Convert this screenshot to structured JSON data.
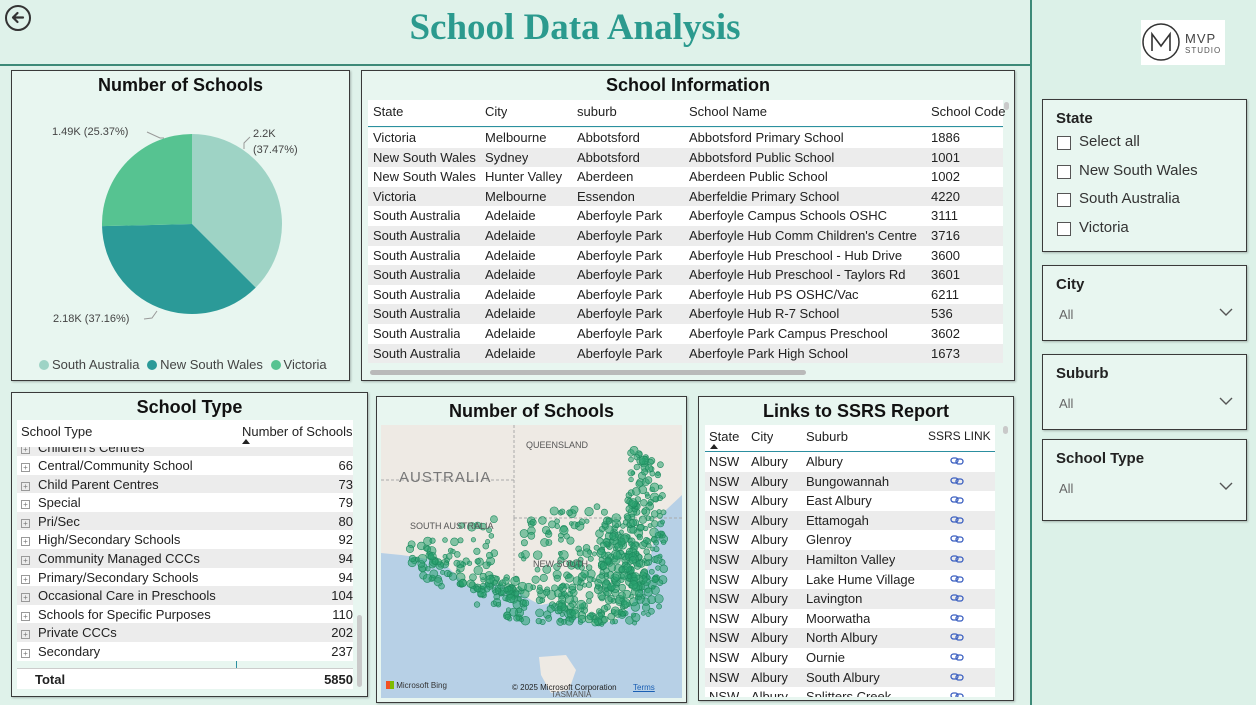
{
  "page": {
    "title": "School Data Analysis"
  },
  "logo": {
    "text1": "MVP",
    "text2": "STUDIO"
  },
  "pie": {
    "title": "Number of Schools",
    "labels": {
      "sa": "1.49K (25.37%)",
      "nsw_line1": "2.2K",
      "nsw_line2": "(37.47%)",
      "vic": "2.18K (37.16%)"
    },
    "legend": [
      "South Australia",
      "New South Wales",
      "Victoria"
    ],
    "colors": [
      "#9ed3c5",
      "#2b9a98",
      "#56c391"
    ]
  },
  "chart_data": {
    "type": "pie",
    "title": "Number of Schools",
    "slices": [
      {
        "label": "New South Wales",
        "value": 2200,
        "percent": 37.47,
        "display": "2.2K (37.47%)",
        "color": "#9ed3c5"
      },
      {
        "label": "Victoria",
        "value": 2180,
        "percent": 37.16,
        "display": "2.18K (37.16%)",
        "color": "#2b9a98"
      },
      {
        "label": "South Australia",
        "value": 1490,
        "percent": 25.37,
        "display": "1.49K (25.37%)",
        "color": "#56c391"
      }
    ]
  },
  "school_info": {
    "title": "School Information",
    "headers": [
      "State",
      "City",
      "suburb",
      "School Name",
      "School Code"
    ],
    "rows": [
      [
        "Victoria",
        "Melbourne",
        "Abbotsford",
        "Abbotsford Primary School",
        "1886"
      ],
      [
        "New South Wales",
        "Sydney",
        "Abbotsford",
        "Abbotsford Public School",
        "1001"
      ],
      [
        "New South Wales",
        "Hunter Valley",
        "Aberdeen",
        "Aberdeen Public School",
        "1002"
      ],
      [
        "Victoria",
        "Melbourne",
        "Essendon",
        "Aberfeldie Primary School",
        "4220"
      ],
      [
        "South Australia",
        "Adelaide",
        "Aberfoyle Park",
        "Aberfoyle Campus Schools OSHC",
        "3111"
      ],
      [
        "South Australia",
        "Adelaide",
        "Aberfoyle Park",
        "Aberfoyle Hub Comm Children's Centre",
        "3716"
      ],
      [
        "South Australia",
        "Adelaide",
        "Aberfoyle Park",
        "Aberfoyle Hub Preschool - Hub Drive",
        "3600"
      ],
      [
        "South Australia",
        "Adelaide",
        "Aberfoyle Park",
        "Aberfoyle Hub Preschool - Taylors Rd",
        "3601"
      ],
      [
        "South Australia",
        "Adelaide",
        "Aberfoyle Park",
        "Aberfoyle Hub PS OSHC/Vac",
        "6211"
      ],
      [
        "South Australia",
        "Adelaide",
        "Aberfoyle Park",
        "Aberfoyle Hub R-7 School",
        "536"
      ],
      [
        "South Australia",
        "Adelaide",
        "Aberfoyle Park",
        "Aberfoyle Park Campus Preschool",
        "3602"
      ],
      [
        "South Australia",
        "Adelaide",
        "Aberfoyle Park",
        "Aberfoyle Park High School",
        "1673"
      ]
    ]
  },
  "school_type": {
    "title": "School Type",
    "headers": [
      "School Type",
      "Number of Schools"
    ],
    "partial_top": "Children's Centres",
    "rows": [
      [
        "Central/Community School",
        "66"
      ],
      [
        "Child Parent Centres",
        "73"
      ],
      [
        "Special",
        "79"
      ],
      [
        "Pri/Sec",
        "80"
      ],
      [
        "High/Secondary Schools",
        "92"
      ],
      [
        "Community Managed CCCs",
        "94"
      ],
      [
        "Primary/Secondary Schools",
        "94"
      ],
      [
        "Occasional Care in Preschools",
        "104"
      ],
      [
        "Schools for Specific Purposes",
        "110"
      ],
      [
        "Private CCCs",
        "202"
      ],
      [
        "Secondary",
        "237"
      ]
    ],
    "total_label": "Total",
    "total_value": "5850"
  },
  "map": {
    "title": "Number of Schools",
    "labels": {
      "queensland": "QUEENSLAND",
      "australia": "AUSTRALIA",
      "south_australia": "SOUTH AUSTRALIA",
      "nsw": "NEW SOUTH",
      "tasmania": "TASMANIA"
    },
    "bing": "Microsoft Bing",
    "copyright": "© 2025 Microsoft Corporation",
    "terms": "Terms"
  },
  "ssrs": {
    "title": "Links to SSRS Report",
    "headers": [
      "State",
      "City",
      "Suburb",
      "SSRS LINK"
    ],
    "rows": [
      [
        "NSW",
        "Albury",
        "Albury"
      ],
      [
        "NSW",
        "Albury",
        "Bungowannah"
      ],
      [
        "NSW",
        "Albury",
        "East Albury"
      ],
      [
        "NSW",
        "Albury",
        "Ettamogah"
      ],
      [
        "NSW",
        "Albury",
        "Glenroy"
      ],
      [
        "NSW",
        "Albury",
        "Hamilton Valley"
      ],
      [
        "NSW",
        "Albury",
        "Lake Hume Village"
      ],
      [
        "NSW",
        "Albury",
        "Lavington"
      ],
      [
        "NSW",
        "Albury",
        "Moorwatha"
      ],
      [
        "NSW",
        "Albury",
        "North Albury"
      ],
      [
        "NSW",
        "Albury",
        "Ournie"
      ],
      [
        "NSW",
        "Albury",
        "South Albury"
      ],
      [
        "NSW",
        "Albury",
        "Splitters Creek"
      ]
    ]
  },
  "slicers": {
    "state": {
      "title": "State",
      "options": [
        "Select all",
        "New South Wales",
        "South Australia",
        "Victoria"
      ]
    },
    "city": {
      "title": "City",
      "value": "All"
    },
    "suburb": {
      "title": "Suburb",
      "value": "All"
    },
    "school_type": {
      "title": "School Type",
      "value": "All"
    }
  }
}
